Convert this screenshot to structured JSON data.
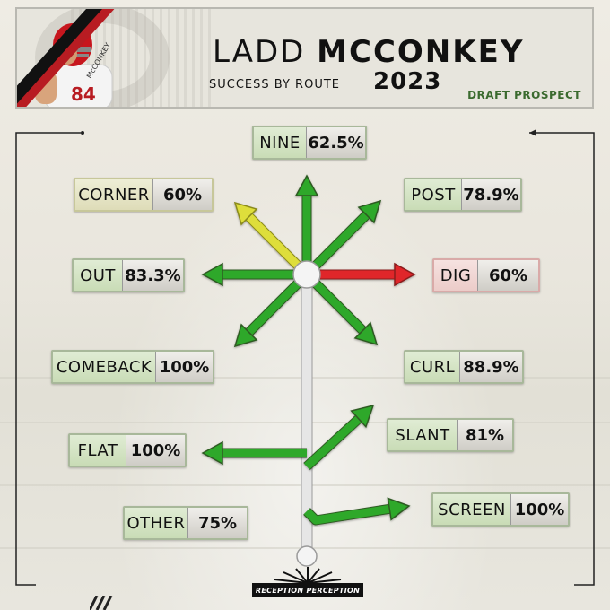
{
  "header": {
    "first_name": "LADD",
    "last_name": "MCCONKEY",
    "subtitle": "SUCCESS BY ROUTE",
    "year": "2023",
    "tag": "DRAFT PROSPECT",
    "jersey_number": "84",
    "jersey_name": "McCONKEY"
  },
  "routes": [
    {
      "id": "nine",
      "label": "NINE",
      "value": "62.5%",
      "status": "green"
    },
    {
      "id": "corner",
      "label": "CORNER",
      "value": "60%",
      "status": "yellow"
    },
    {
      "id": "post",
      "label": "POST",
      "value": "78.9%",
      "status": "green"
    },
    {
      "id": "out",
      "label": "OUT",
      "value": "83.3%",
      "status": "green"
    },
    {
      "id": "dig",
      "label": "DIG",
      "value": "60%",
      "status": "red"
    },
    {
      "id": "comeback",
      "label": "COMEBACK",
      "value": "100%",
      "status": "green"
    },
    {
      "id": "curl",
      "label": "CURL",
      "value": "88.9%",
      "status": "green"
    },
    {
      "id": "slant",
      "label": "SLANT",
      "value": "81%",
      "status": "green"
    },
    {
      "id": "flat",
      "label": "FLAT",
      "value": "100%",
      "status": "green"
    },
    {
      "id": "screen",
      "label": "SCREEN",
      "value": "100%",
      "status": "green"
    },
    {
      "id": "other",
      "label": "OTHER",
      "value": "75%",
      "status": "green"
    }
  ],
  "colors": {
    "green": "#2fa82a",
    "yellow": "#dede3a",
    "red": "#e0262b",
    "stem": "#e6e6e6",
    "accent_red": "#b81c22"
  },
  "footer": {
    "logo_text": "RECEPTION PERCEPTION"
  }
}
